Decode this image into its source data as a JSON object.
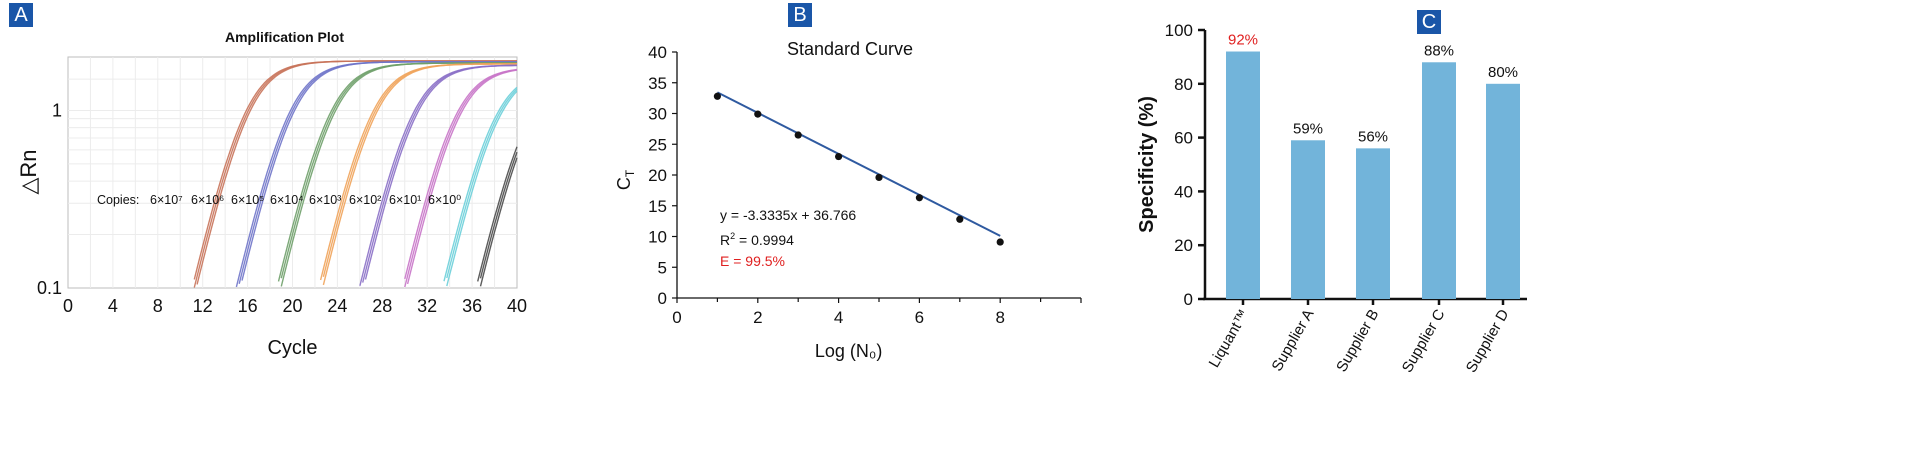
{
  "panels": {
    "a": "A",
    "b": "B",
    "c": "C"
  },
  "chart_data": [
    {
      "type": "line",
      "title": "Amplification Plot",
      "xlabel": "Cycle",
      "ylabel": "△Rn",
      "xlim": [
        0,
        40
      ],
      "ylim": [
        0.1,
        2
      ],
      "yscale": "log",
      "xticks": [
        "0",
        "4",
        "8",
        "12",
        "16",
        "20",
        "24",
        "28",
        "32",
        "36",
        "40"
      ],
      "yticks": [
        "0.1",
        "1"
      ],
      "grid": true,
      "annotation_prefix": "Copies:",
      "series": [
        {
          "name": "6×10⁷",
          "color": "#c8735a",
          "cross_cycle": 8.8,
          "plateau": 1.9
        },
        {
          "name": "6×10⁶",
          "color": "#6f74c9",
          "cross_cycle": 12.7,
          "plateau": 1.88
        },
        {
          "name": "6×10⁵",
          "color": "#6fa06a",
          "cross_cycle": 16.3,
          "plateau": 1.85
        },
        {
          "name": "6×10⁴",
          "color": "#f0a35a",
          "cross_cycle": 20.0,
          "plateau": 1.83
        },
        {
          "name": "6×10³",
          "color": "#8a6fc7",
          "cross_cycle": 23.6,
          "plateau": 1.8
        },
        {
          "name": "6×10²",
          "color": "#c874c8",
          "cross_cycle": 27.4,
          "plateau": 1.75
        },
        {
          "name": "6×10¹",
          "color": "#6ccfd9",
          "cross_cycle": 30.9,
          "plateau": 1.7
        },
        {
          "name": "6×10⁰",
          "color": "#4a4a4a",
          "cross_cycle": 33.8,
          "plateau": 1.6
        }
      ]
    },
    {
      "type": "scatter",
      "title": "Standard Curve",
      "xlabel": "Log (N₀)",
      "ylabel": "C",
      "ylabel_sub": "T",
      "xlim": [
        0,
        10
      ],
      "ylim": [
        0,
        40
      ],
      "xticks": [
        "0",
        "2",
        "4",
        "6",
        "8"
      ],
      "yticks": [
        "0",
        "5",
        "10",
        "15",
        "20",
        "25",
        "30",
        "35",
        "40"
      ],
      "points": [
        {
          "x": 1,
          "y": 32.8
        },
        {
          "x": 2,
          "y": 29.9
        },
        {
          "x": 3,
          "y": 26.5
        },
        {
          "x": 4,
          "y": 23.0
        },
        {
          "x": 5,
          "y": 19.6
        },
        {
          "x": 6,
          "y": 16.3
        },
        {
          "x": 7,
          "y": 12.8
        },
        {
          "x": 8,
          "y": 9.1
        }
      ],
      "fit": {
        "slope": -3.3335,
        "intercept": 36.766,
        "x_start": 1,
        "x_end": 8
      },
      "fit_color": "#2f5aa0",
      "equation": "y = -3.3335x + 36.766",
      "r2_label": "R",
      "r2_value": " = 0.9994",
      "efficiency": "E = 99.5%",
      "efficiency_color": "#e02020"
    },
    {
      "type": "bar",
      "xlabel": "",
      "ylabel": "Specificity (%)",
      "ylim": [
        0,
        100
      ],
      "yticks": [
        "0",
        "20",
        "40",
        "60",
        "80",
        "100"
      ],
      "bar_color": "#72b4da",
      "categories": [
        "Liquant™",
        "Supplier A",
        "Supplier B",
        "Supplier C",
        "Supplier D"
      ],
      "values": [
        92,
        59,
        56,
        88,
        80
      ],
      "data_labels": [
        "92%",
        "59%",
        "56%",
        "88%",
        "80%"
      ],
      "label_colors": [
        "#e02020",
        "#111111",
        "#111111",
        "#111111",
        "#111111"
      ]
    }
  ]
}
